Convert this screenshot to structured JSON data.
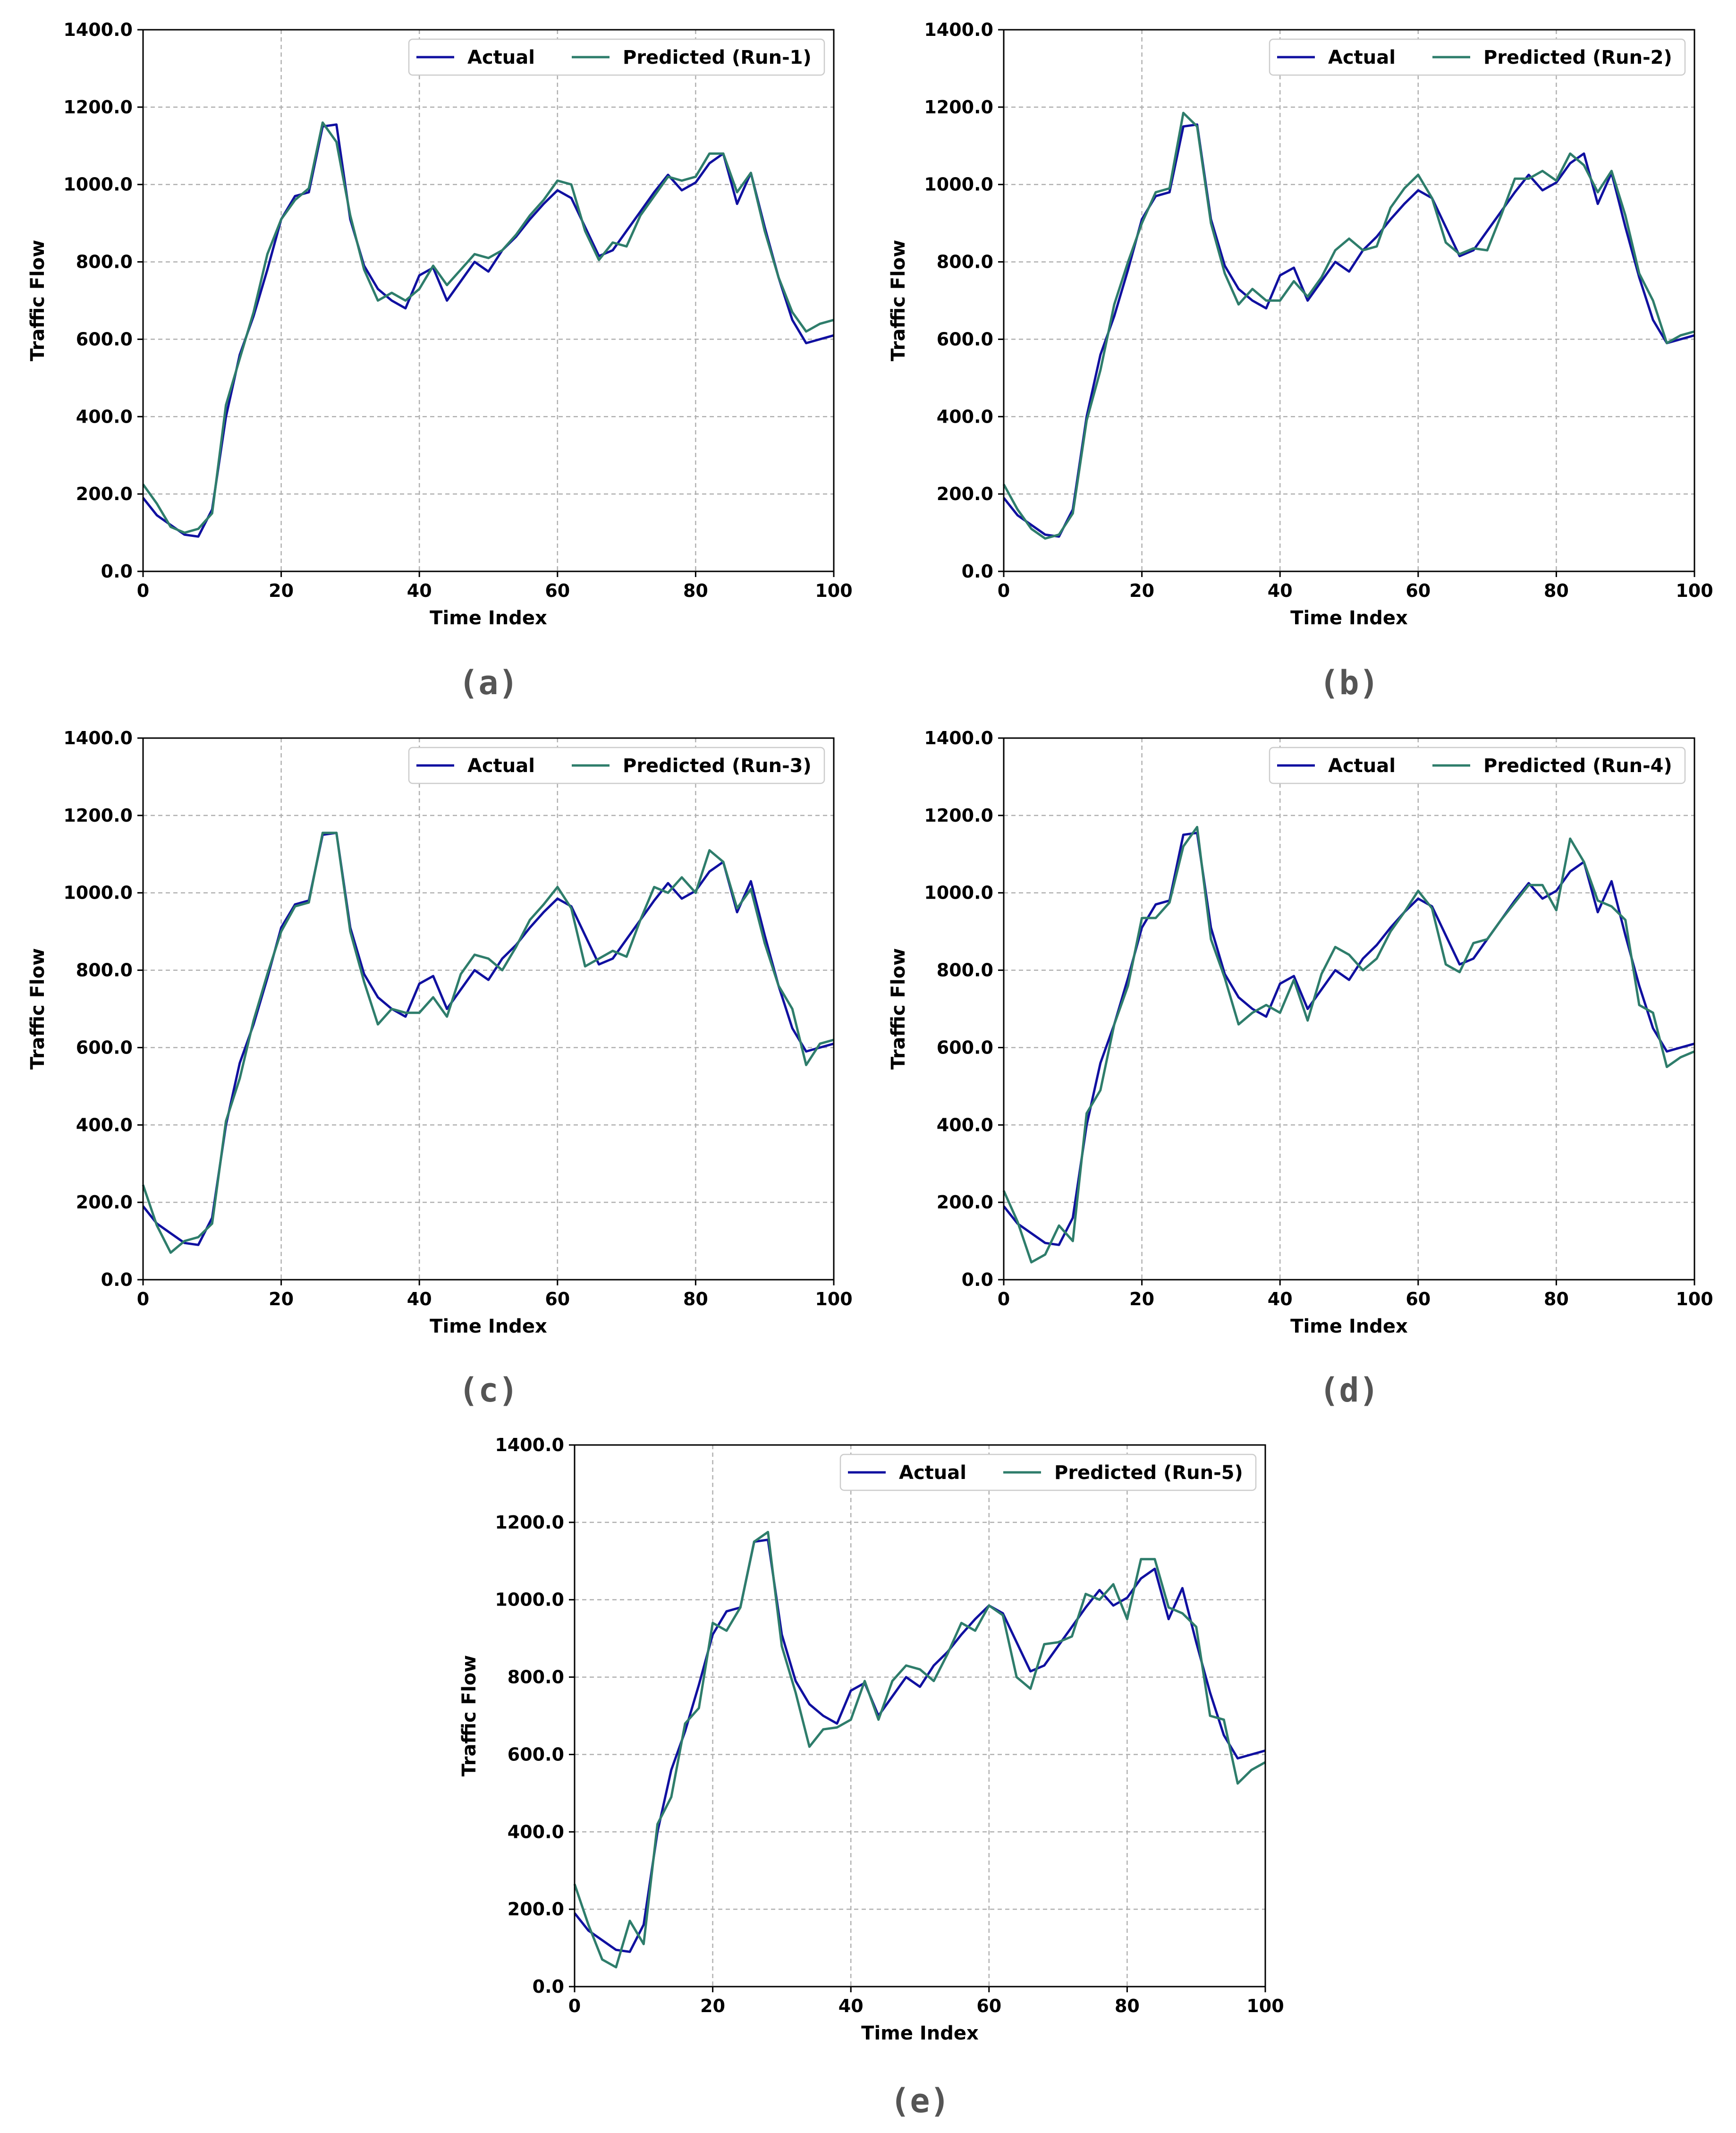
{
  "colors": {
    "actual": "#1010a0",
    "predicted": "#2e7d6b",
    "grid": "#b0b0b0",
    "axis": "#000000",
    "caption": "#555555"
  },
  "axis_common": {
    "xlabel": "Time Index",
    "ylabel": "Traffic Flow",
    "x_ticks": [
      "0",
      "20",
      "40",
      "60",
      "80",
      "100"
    ],
    "y_ticks": [
      "0.0",
      "200.0",
      "400.0",
      "600.0",
      "800.0",
      "1000.0",
      "1200.0",
      "1400.0"
    ]
  },
  "chart_data": [
    {
      "type": "line",
      "caption": "(a)",
      "xlabel": "Time Index",
      "ylabel": "Traffic Flow",
      "xlim": [
        0,
        100
      ],
      "ylim": [
        0,
        1400
      ],
      "grid": true,
      "legend": "top-right",
      "x": [
        0,
        2,
        4,
        6,
        8,
        10,
        12,
        14,
        16,
        18,
        20,
        22,
        24,
        26,
        28,
        30,
        32,
        34,
        36,
        38,
        40,
        42,
        44,
        46,
        48,
        50,
        52,
        54,
        56,
        58,
        60,
        62,
        64,
        66,
        68,
        70,
        72,
        74,
        76,
        78,
        80,
        82,
        84,
        86,
        88,
        90,
        92,
        94,
        96,
        98,
        100
      ],
      "series": [
        {
          "name": "Actual",
          "values": [
            190,
            145,
            120,
            95,
            90,
            160,
            400,
            560,
            660,
            780,
            910,
            970,
            980,
            1150,
            1155,
            910,
            790,
            730,
            700,
            680,
            765,
            785,
            700,
            750,
            800,
            775,
            830,
            865,
            910,
            950,
            985,
            965,
            890,
            815,
            830,
            880,
            930,
            980,
            1025,
            985,
            1005,
            1055,
            1080,
            950,
            1030,
            890,
            760,
            650,
            590,
            600,
            610
          ]
        },
        {
          "name": "Predicted (Run-1)",
          "values": [
            225,
            175,
            115,
            100,
            110,
            150,
            430,
            550,
            670,
            820,
            910,
            960,
            990,
            1160,
            1110,
            920,
            780,
            700,
            720,
            700,
            730,
            790,
            740,
            780,
            820,
            810,
            830,
            870,
            920,
            960,
            1010,
            1000,
            880,
            805,
            850,
            840,
            920,
            970,
            1020,
            1010,
            1020,
            1080,
            1080,
            980,
            1030,
            880,
            760,
            670,
            620,
            640,
            650
          ]
        }
      ]
    },
    {
      "type": "line",
      "caption": "(b)",
      "xlabel": "Time Index",
      "ylabel": "Traffic Flow",
      "xlim": [
        0,
        100
      ],
      "ylim": [
        0,
        1400
      ],
      "grid": true,
      "legend": "top-right",
      "x": [
        0,
        2,
        4,
        6,
        8,
        10,
        12,
        14,
        16,
        18,
        20,
        22,
        24,
        26,
        28,
        30,
        32,
        34,
        36,
        38,
        40,
        42,
        44,
        46,
        48,
        50,
        52,
        54,
        56,
        58,
        60,
        62,
        64,
        66,
        68,
        70,
        72,
        74,
        76,
        78,
        80,
        82,
        84,
        86,
        88,
        90,
        92,
        94,
        96,
        98,
        100
      ],
      "series": [
        {
          "name": "Actual",
          "values": [
            190,
            145,
            120,
            95,
            90,
            160,
            400,
            560,
            660,
            780,
            910,
            970,
            980,
            1150,
            1155,
            910,
            790,
            730,
            700,
            680,
            765,
            785,
            700,
            750,
            800,
            775,
            830,
            865,
            910,
            950,
            985,
            965,
            890,
            815,
            830,
            880,
            930,
            980,
            1025,
            985,
            1005,
            1055,
            1080,
            950,
            1030,
            890,
            760,
            650,
            590,
            600,
            610
          ]
        },
        {
          "name": "Predicted (Run-2)",
          "values": [
            225,
            160,
            110,
            85,
            95,
            150,
            390,
            520,
            690,
            800,
            900,
            980,
            990,
            1185,
            1150,
            900,
            770,
            690,
            730,
            700,
            700,
            750,
            710,
            760,
            830,
            860,
            830,
            840,
            940,
            990,
            1025,
            965,
            850,
            820,
            835,
            830,
            920,
            1015,
            1015,
            1035,
            1010,
            1080,
            1050,
            980,
            1035,
            920,
            770,
            700,
            590,
            610,
            620
          ]
        }
      ]
    },
    {
      "type": "line",
      "caption": "(c)",
      "xlabel": "Time Index",
      "ylabel": "Traffic Flow",
      "xlim": [
        0,
        100
      ],
      "ylim": [
        0,
        1400
      ],
      "grid": true,
      "legend": "top-right",
      "x": [
        0,
        2,
        4,
        6,
        8,
        10,
        12,
        14,
        16,
        18,
        20,
        22,
        24,
        26,
        28,
        30,
        32,
        34,
        36,
        38,
        40,
        42,
        44,
        46,
        48,
        50,
        52,
        54,
        56,
        58,
        60,
        62,
        64,
        66,
        68,
        70,
        72,
        74,
        76,
        78,
        80,
        82,
        84,
        86,
        88,
        90,
        92,
        94,
        96,
        98,
        100
      ],
      "series": [
        {
          "name": "Actual",
          "values": [
            190,
            145,
            120,
            95,
            90,
            160,
            400,
            560,
            660,
            780,
            910,
            970,
            980,
            1150,
            1155,
            910,
            790,
            730,
            700,
            680,
            765,
            785,
            700,
            750,
            800,
            775,
            830,
            865,
            910,
            950,
            985,
            965,
            890,
            815,
            830,
            880,
            930,
            980,
            1025,
            985,
            1005,
            1055,
            1080,
            950,
            1030,
            890,
            760,
            650,
            590,
            600,
            610
          ]
        },
        {
          "name": "Predicted (Run-3)",
          "values": [
            245,
            140,
            70,
            100,
            110,
            145,
            410,
            520,
            670,
            790,
            900,
            965,
            975,
            1155,
            1155,
            900,
            770,
            660,
            700,
            690,
            690,
            730,
            680,
            790,
            840,
            830,
            800,
            860,
            930,
            970,
            1015,
            960,
            810,
            830,
            850,
            835,
            930,
            1015,
            1000,
            1040,
            1000,
            1110,
            1080,
            960,
            1010,
            870,
            760,
            700,
            555,
            610,
            620
          ]
        }
      ]
    },
    {
      "type": "line",
      "caption": "(d)",
      "xlabel": "Time Index",
      "ylabel": "Traffic Flow",
      "xlim": [
        0,
        100
      ],
      "ylim": [
        0,
        1400
      ],
      "grid": true,
      "legend": "top-right",
      "x": [
        0,
        2,
        4,
        6,
        8,
        10,
        12,
        14,
        16,
        18,
        20,
        22,
        24,
        26,
        28,
        30,
        32,
        34,
        36,
        38,
        40,
        42,
        44,
        46,
        48,
        50,
        52,
        54,
        56,
        58,
        60,
        62,
        64,
        66,
        68,
        70,
        72,
        74,
        76,
        78,
        80,
        82,
        84,
        86,
        88,
        90,
        92,
        94,
        96,
        98,
        100
      ],
      "series": [
        {
          "name": "Actual",
          "values": [
            190,
            145,
            120,
            95,
            90,
            160,
            400,
            560,
            660,
            780,
            910,
            970,
            980,
            1150,
            1155,
            910,
            790,
            730,
            700,
            680,
            765,
            785,
            700,
            750,
            800,
            775,
            830,
            865,
            910,
            950,
            985,
            965,
            890,
            815,
            830,
            880,
            930,
            980,
            1025,
            985,
            1005,
            1055,
            1080,
            950,
            1030,
            890,
            760,
            650,
            590,
            600,
            610
          ]
        },
        {
          "name": "Predicted (Run-4)",
          "values": [
            230,
            150,
            45,
            65,
            140,
            100,
            430,
            490,
            660,
            760,
            935,
            935,
            975,
            1120,
            1170,
            880,
            780,
            660,
            690,
            710,
            690,
            775,
            670,
            790,
            860,
            840,
            800,
            830,
            900,
            950,
            1005,
            960,
            815,
            795,
            870,
            880,
            930,
            975,
            1020,
            1020,
            955,
            1140,
            1080,
            980,
            965,
            930,
            710,
            690,
            550,
            575,
            590
          ]
        }
      ]
    },
    {
      "type": "line",
      "caption": "(e)",
      "xlabel": "Time Index",
      "ylabel": "Traffic Flow",
      "xlim": [
        0,
        100
      ],
      "ylim": [
        0,
        1400
      ],
      "grid": true,
      "legend": "top-right",
      "x": [
        0,
        2,
        4,
        6,
        8,
        10,
        12,
        14,
        16,
        18,
        20,
        22,
        24,
        26,
        28,
        30,
        32,
        34,
        36,
        38,
        40,
        42,
        44,
        46,
        48,
        50,
        52,
        54,
        56,
        58,
        60,
        62,
        64,
        66,
        68,
        70,
        72,
        74,
        76,
        78,
        80,
        82,
        84,
        86,
        88,
        90,
        92,
        94,
        96,
        98,
        100
      ],
      "series": [
        {
          "name": "Actual",
          "values": [
            190,
            145,
            120,
            95,
            90,
            160,
            400,
            560,
            660,
            780,
            910,
            970,
            980,
            1150,
            1155,
            910,
            790,
            730,
            700,
            680,
            765,
            785,
            700,
            750,
            800,
            775,
            830,
            865,
            910,
            950,
            985,
            965,
            890,
            815,
            830,
            880,
            930,
            980,
            1025,
            985,
            1005,
            1055,
            1080,
            950,
            1030,
            890,
            760,
            650,
            590,
            600,
            610
          ]
        },
        {
          "name": "Predicted (Run-5)",
          "values": [
            265,
            160,
            70,
            50,
            170,
            110,
            420,
            490,
            680,
            720,
            940,
            920,
            980,
            1150,
            1175,
            880,
            760,
            620,
            665,
            670,
            690,
            790,
            690,
            790,
            830,
            820,
            790,
            860,
            940,
            920,
            985,
            960,
            800,
            770,
            885,
            890,
            905,
            1015,
            1000,
            1040,
            950,
            1105,
            1105,
            980,
            965,
            930,
            700,
            690,
            525,
            560,
            580
          ]
        }
      ]
    }
  ]
}
